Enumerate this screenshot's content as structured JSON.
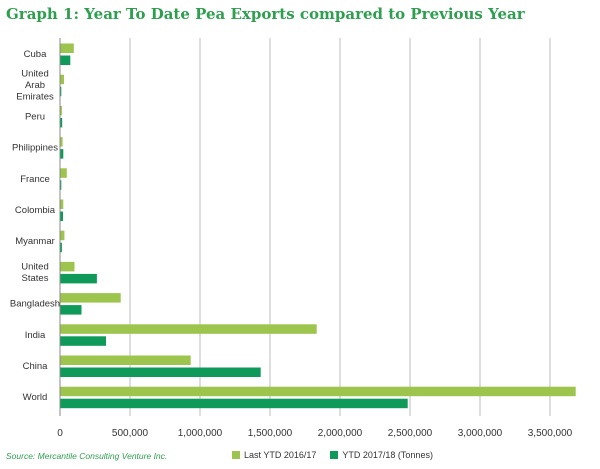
{
  "chart_data": {
    "type": "bar",
    "orientation": "horizontal",
    "title": "Graph 1: Year To Date Pea Exports compared to Previous Year",
    "categories": [
      "Cuba",
      "United Arab Emirates",
      "Peru",
      "Philippines",
      "France",
      "Colombia",
      "Myanmar",
      "United States",
      "Bangladesh",
      "India",
      "China",
      "World"
    ],
    "category_lines": [
      [
        "Cuba"
      ],
      [
        "United",
        "Arab",
        "Emirates"
      ],
      [
        "Peru"
      ],
      [
        "Philippines"
      ],
      [
        "France"
      ],
      [
        "Colombia"
      ],
      [
        "Myanmar"
      ],
      [
        "United",
        "States"
      ],
      [
        "Bangladesh"
      ],
      [
        "India"
      ],
      [
        "China"
      ],
      [
        "World"
      ]
    ],
    "series": [
      {
        "name": "Last YTD 2016/17",
        "color": "#9dc44d",
        "values": [
          95000,
          25000,
          10000,
          15000,
          45000,
          20000,
          28000,
          100000,
          430000,
          1830000,
          930000,
          3680000
        ]
      },
      {
        "name": "YTD 2017/18 (Tonnes)",
        "color": "#0f9a5a",
        "values": [
          70000,
          5000,
          12000,
          20000,
          5000,
          18000,
          10000,
          260000,
          150000,
          325000,
          1430000,
          2480000
        ]
      }
    ],
    "xlim": [
      0,
      3700000
    ],
    "xticks": [
      0,
      500000,
      1000000,
      1500000,
      2000000,
      2500000,
      3000000,
      3500000
    ],
    "xtick_labels": [
      "0",
      "500,000",
      "1,000,000",
      "1,500,000",
      "2,000,000",
      "2,500,000",
      "3,000,000",
      "3,500,000"
    ],
    "xlabel": "",
    "ylabel": "",
    "grid": true,
    "legend_position": "bottom"
  },
  "source": "Source: Mercantile Consulting Venture Inc."
}
